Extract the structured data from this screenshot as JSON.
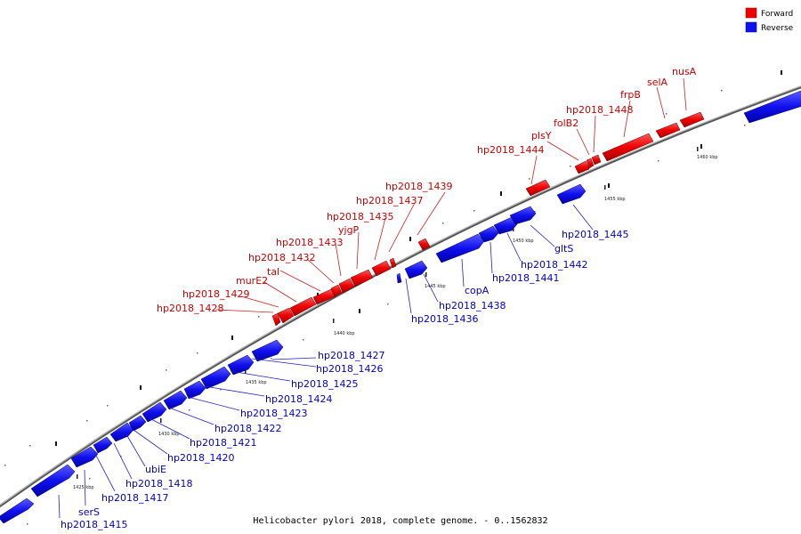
{
  "caption": "Helicobacter pylori 2018, complete genome. - 0..1562832",
  "legend": [
    {
      "name": "Forward",
      "color": "#ee0000"
    },
    {
      "name": "Reverse",
      "color": "#1010ee"
    }
  ],
  "scale_ticks": [
    "1425 kbp",
    "1430 kbp",
    "1435 kbp",
    "1440 kbp",
    "1445 kbp",
    "1450 kbp",
    "1455 kbp",
    "1460 kbp"
  ],
  "reverse_genes": [
    "hp2018_1415",
    "serS",
    "hp2018_1417",
    "hp2018_1418",
    "ubiE",
    "hp2018_1420",
    "hp2018_1421",
    "hp2018_1422",
    "hp2018_1423",
    "hp2018_1424",
    "hp2018_1425",
    "hp2018_1426",
    "hp2018_1427",
    "hp2018_1436",
    "hp2018_1438",
    "copA",
    "hp2018_1441",
    "hp2018_1442",
    "gltS",
    "hp2018_1445"
  ],
  "forward_genes": [
    "hp2018_1428",
    "hp2018_1429",
    "murE2",
    "tal",
    "hp2018_1432",
    "hp2018_1433",
    "yjgP",
    "hp2018_1435",
    "hp2018_1437",
    "hp2018_1439",
    "hp2018_1444",
    "plsY",
    "folB2",
    "hp2018_1448",
    "frpB",
    "selA",
    "nusA"
  ]
}
